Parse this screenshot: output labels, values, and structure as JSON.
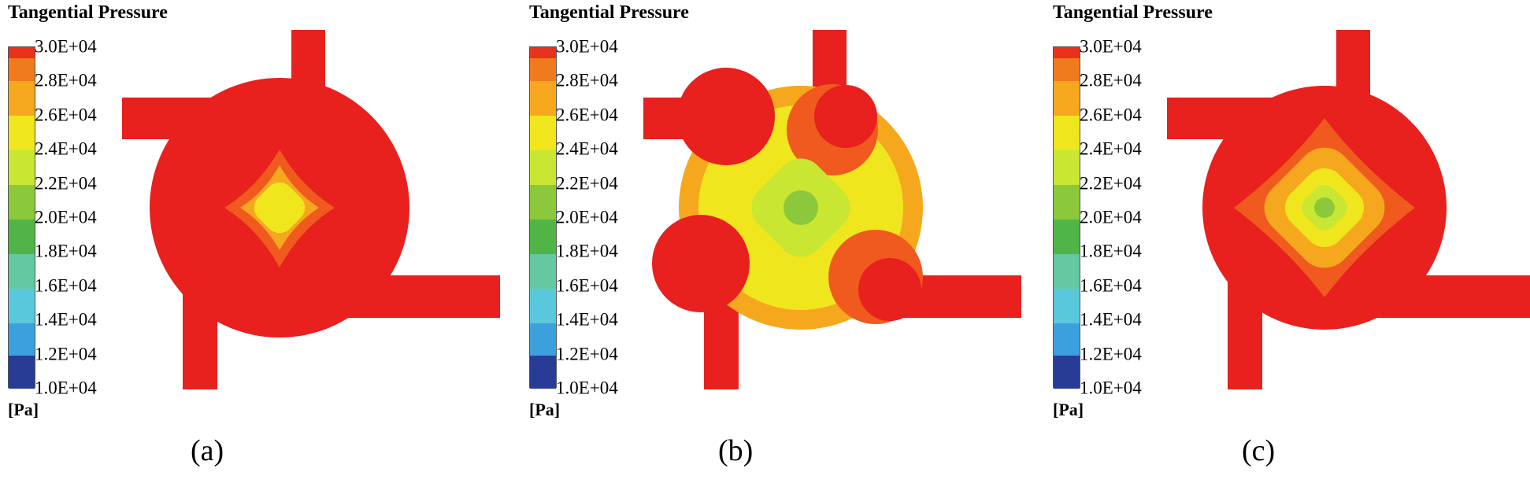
{
  "figure": {
    "panels": [
      {
        "caption": "(a)",
        "title": "Tangential Pressure",
        "unit": "[Pa]"
      },
      {
        "caption": "(b)",
        "title": "Tangential Pressure",
        "unit": "[Pa]"
      },
      {
        "caption": "(c)",
        "title": "Tangential Pressure",
        "unit": "[Pa]"
      }
    ],
    "legend": {
      "ticks": [
        "3.0E+04",
        "2.8E+04",
        "2.6E+04",
        "2.4E+04",
        "2.2E+04",
        "2.0E+04",
        "1.8E+04",
        "1.6E+04",
        "1.4E+04",
        "1.2E+04",
        "1.0E+04"
      ],
      "band_colors": [
        "#e8321e",
        "#f07a1e",
        "#f5a81e",
        "#f0e61e",
        "#c8e632",
        "#8cc83c",
        "#50b446",
        "#64c8a0",
        "#5ac8dc",
        "#3ca0dc",
        "#2c64c8",
        "#283c96"
      ]
    },
    "field_colors": {
      "red": "#e8201e",
      "orange_red": "#f05a1e",
      "orange": "#f5a81e",
      "yellow": "#f0e61e",
      "yellow_green": "#c8e632",
      "green": "#8cc83c"
    }
  }
}
